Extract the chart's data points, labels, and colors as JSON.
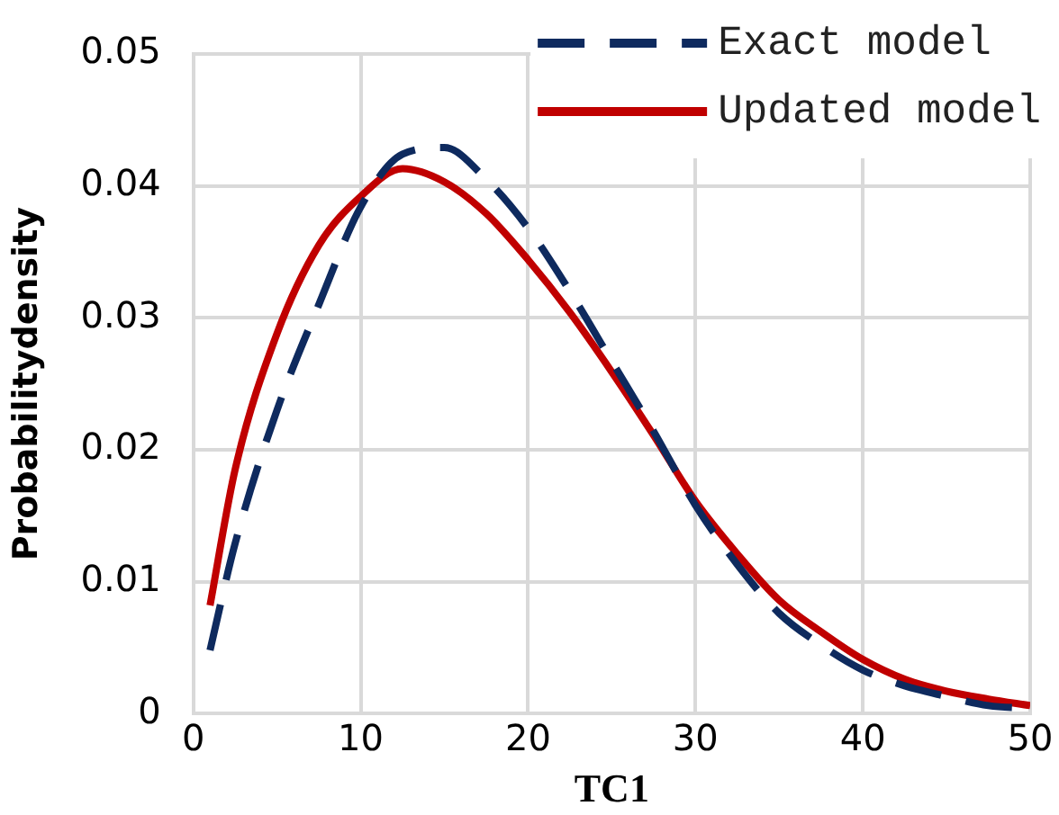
{
  "chart_data": {
    "type": "line",
    "xlabel": "TC1",
    "ylabel": "Probabilitydensity",
    "xlim": [
      0,
      50
    ],
    "xticks": [
      0,
      10,
      20,
      30,
      40,
      50
    ],
    "ylim": [
      0,
      0.05
    ],
    "yticks": [
      0,
      0.01,
      0.02,
      0.03,
      0.04,
      0.05
    ],
    "grid": true,
    "legend": "top right",
    "marker": "none",
    "x": [
      1,
      2.5,
      5,
      7.5,
      10,
      12.5,
      15,
      17.5,
      20,
      22.5,
      25,
      27.5,
      30,
      32.5,
      35,
      37.5,
      40,
      42.5,
      45,
      47.5,
      50
    ],
    "series": [
      {
        "name": "Exact model",
        "color": "#0e2a5e",
        "line_style": "dashed",
        "values": [
          0.0048,
          0.0129,
          0.023,
          0.031,
          0.0384,
          0.0424,
          0.0429,
          0.0405,
          0.0368,
          0.032,
          0.0267,
          0.0214,
          0.0158,
          0.0113,
          0.0076,
          0.0052,
          0.0033,
          0.0021,
          0.0013,
          0.0006,
          0.0004
        ]
      },
      {
        "name": "Updated model",
        "color": "#c00000",
        "line_style": "solid",
        "values": [
          0.0082,
          0.0185,
          0.0288,
          0.0355,
          0.0392,
          0.0413,
          0.0403,
          0.0379,
          0.0344,
          0.0304,
          0.0259,
          0.0211,
          0.0161,
          0.0121,
          0.0086,
          0.0062,
          0.0041,
          0.0026,
          0.0017,
          0.0011,
          0.0006
        ]
      }
    ]
  }
}
